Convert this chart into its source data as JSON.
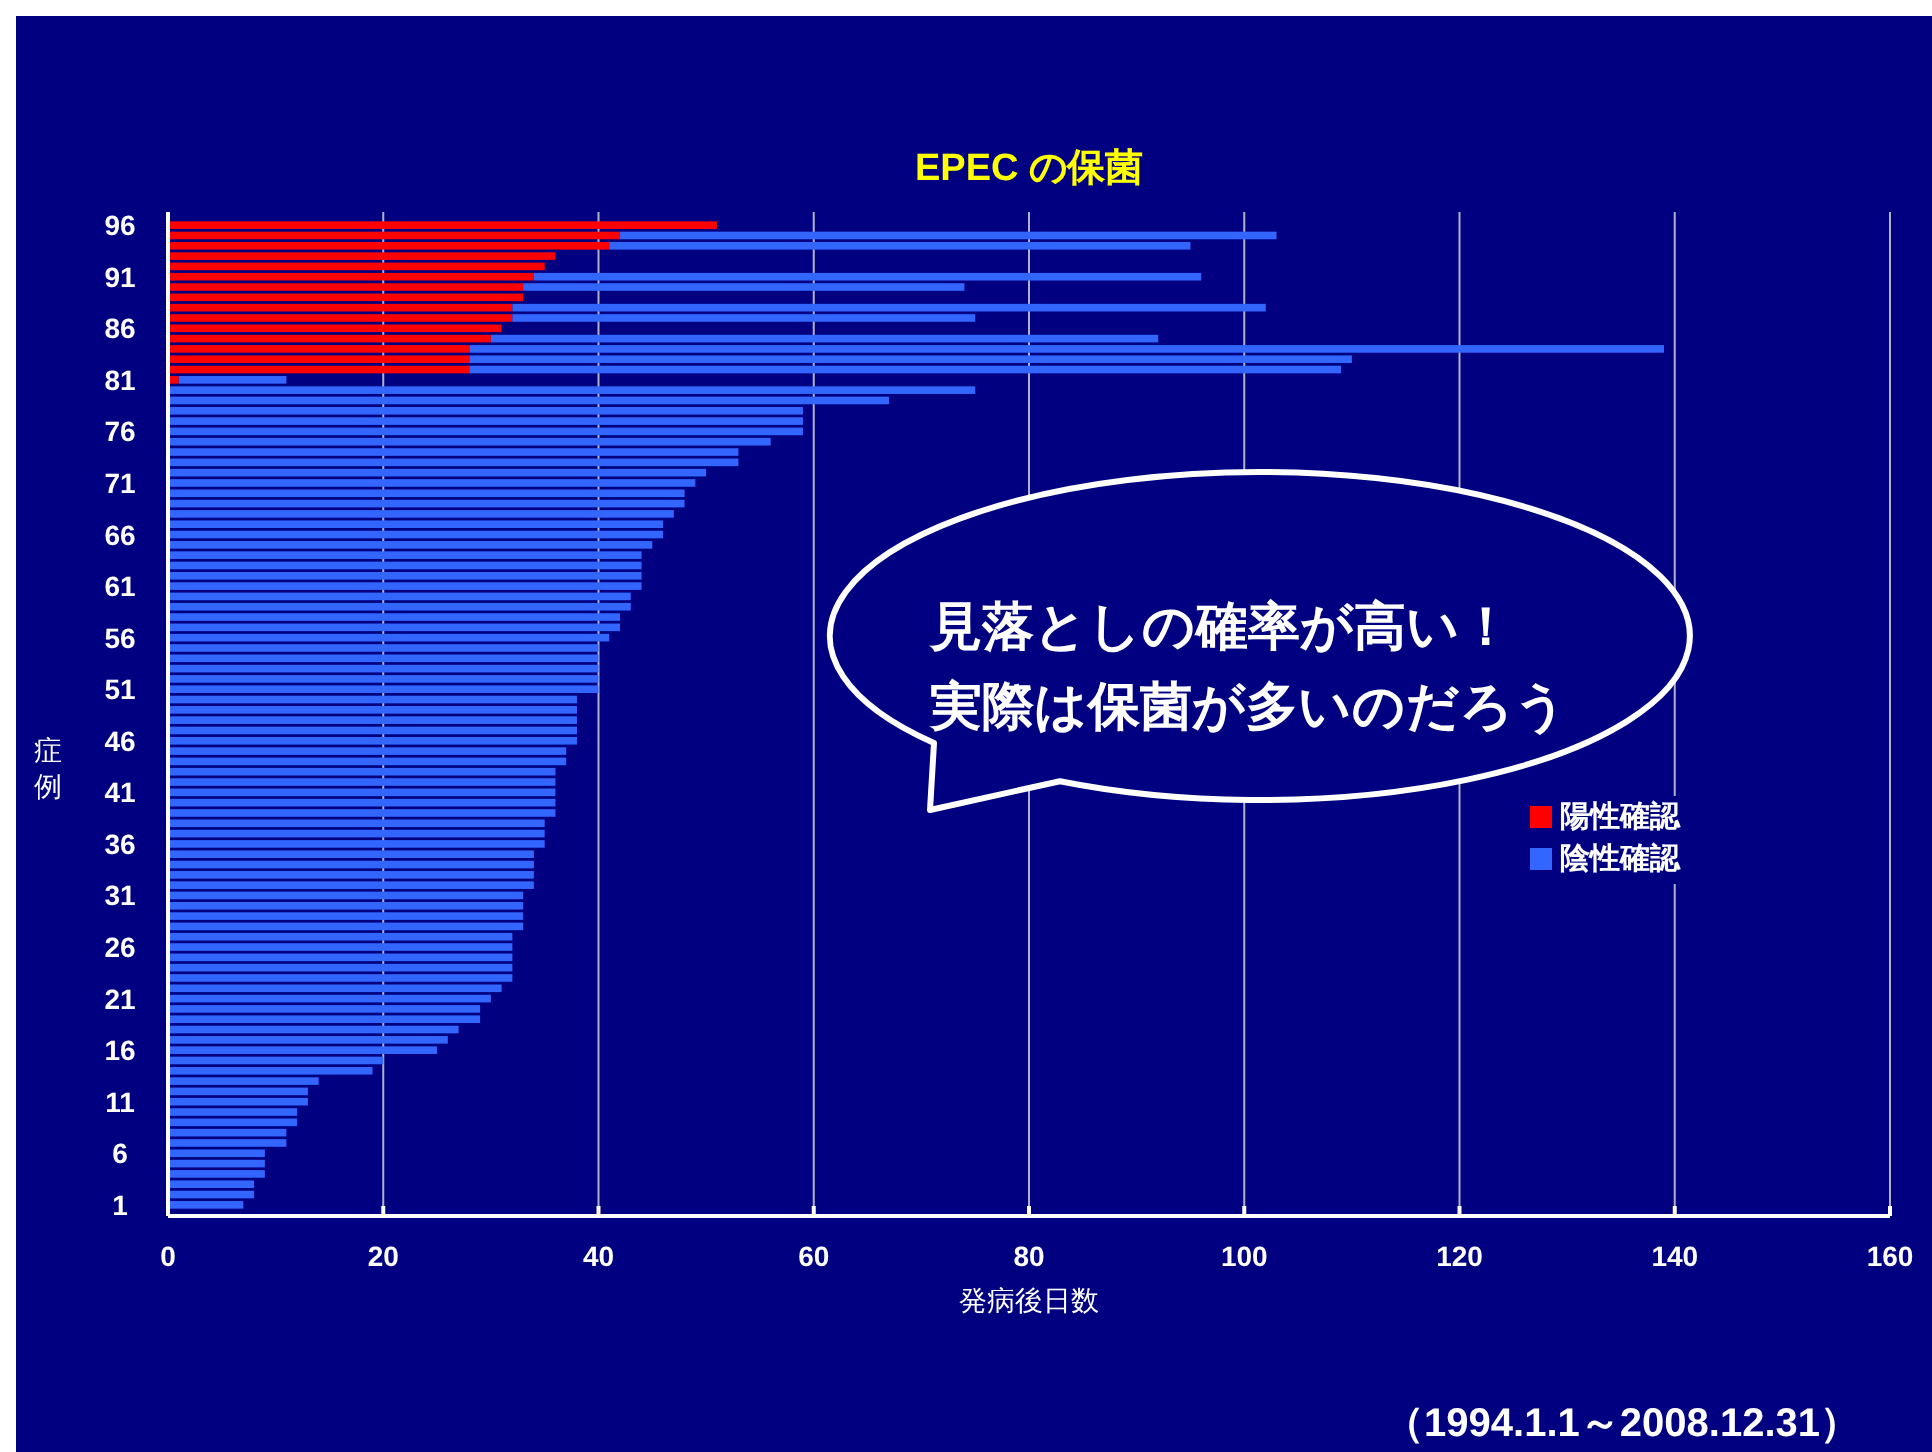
{
  "chart_data": {
    "type": "bar",
    "orientation": "horizontal",
    "stacked": true,
    "title": "EPEC の保菌",
    "xlabel": "発病後日数",
    "ylabel": "症例",
    "categories": [
      "96",
      null,
      null,
      null,
      null,
      "91",
      null,
      null,
      null,
      null,
      "86",
      null,
      null,
      null,
      null,
      "81",
      null,
      null,
      null,
      null,
      "76",
      null,
      null,
      null,
      null,
      "71",
      null,
      null,
      null,
      null,
      "66",
      null,
      null,
      null,
      null,
      "61",
      null,
      null,
      null,
      null,
      "56",
      null,
      null,
      null,
      null,
      "51",
      null,
      null,
      null,
      null,
      "46",
      null,
      null,
      null,
      null,
      "41",
      null,
      null,
      null,
      null,
      "36",
      null,
      null,
      null,
      null,
      "31",
      null,
      null,
      null,
      null,
      "26",
      null,
      null,
      null,
      null,
      "21",
      null,
      null,
      null,
      null,
      "16",
      null,
      null,
      null,
      null,
      "11",
      null,
      null,
      null,
      null,
      "6",
      null,
      null,
      null,
      null,
      "1"
    ],
    "series": [
      {
        "name": "陽性確認",
        "color": "#ff0000",
        "values": [
          51,
          42,
          41,
          36,
          35,
          34,
          33,
          33,
          32,
          32,
          31,
          30,
          28,
          28,
          28,
          1,
          null,
          null,
          null,
          null,
          null,
          null,
          null,
          null,
          null,
          null,
          null,
          null,
          null,
          null,
          null,
          null,
          null,
          null,
          null,
          null,
          null,
          null,
          null,
          null,
          null,
          null,
          null,
          null,
          null,
          null,
          null,
          null,
          null,
          null,
          null,
          null,
          null,
          null,
          null,
          null,
          null,
          null,
          null,
          null,
          null,
          null,
          null,
          null,
          null,
          null,
          null,
          null,
          null,
          null,
          null,
          null,
          null,
          null,
          null,
          null,
          null,
          null,
          null,
          null,
          null,
          null,
          null,
          null,
          null,
          null,
          null,
          null,
          null,
          null,
          null,
          null,
          null,
          null,
          null,
          null
        ]
      },
      {
        "name": "陰性確認",
        "color": "#3366ff",
        "values": [
          null,
          61,
          54,
          null,
          null,
          62,
          41,
          null,
          70,
          43,
          null,
          62,
          111,
          82,
          81,
          10,
          75,
          67,
          59,
          59,
          59,
          56,
          53,
          53,
          50,
          49,
          48,
          48,
          47,
          46,
          46,
          45,
          44,
          44,
          44,
          44,
          43,
          43,
          42,
          42,
          41,
          40,
          40,
          40,
          40,
          40,
          38,
          38,
          38,
          38,
          38,
          37,
          37,
          36,
          36,
          36,
          36,
          36,
          35,
          35,
          35,
          34,
          34,
          34,
          34,
          33,
          33,
          33,
          33,
          32,
          32,
          32,
          32,
          32,
          31,
          30,
          29,
          29,
          27,
          26,
          25,
          20,
          19,
          14,
          13,
          13,
          12,
          12,
          11,
          11,
          9,
          9,
          9,
          8,
          8,
          7
        ]
      }
    ],
    "xlim": [
      0,
      160
    ],
    "xticks": [
      0,
      20,
      40,
      60,
      80,
      100,
      120,
      140,
      160
    ],
    "grid": "x",
    "legend": "right",
    "annotations": [
      "見落としの確率が高い！",
      "実際は保菌が多いのだろう",
      "（1994.1.1～2008.12.31）"
    ]
  }
}
